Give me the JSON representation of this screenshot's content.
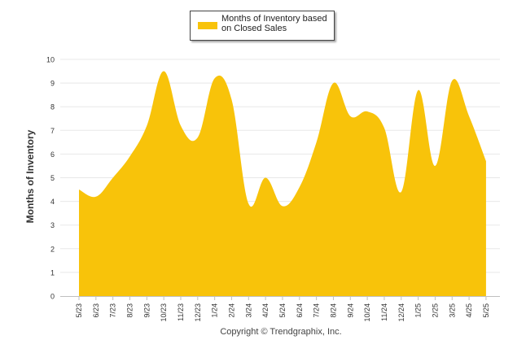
{
  "colors": {
    "fill": "#F8C30A",
    "grid": "#E8E8E8",
    "axis": "#C0C0C0",
    "text": "#333333"
  },
  "legend": {
    "label": "Months of Inventory based on Closed Sales"
  },
  "copyright": "Copyright © Trendgraphix, Inc.",
  "chart_data": {
    "type": "area",
    "title": "",
    "xlabel": "",
    "ylabel": "Months of Inventory",
    "ylim": [
      0,
      10
    ],
    "yticks": [
      "0",
      "1",
      "2",
      "3",
      "4",
      "5",
      "6",
      "7",
      "8",
      "9",
      "10"
    ],
    "grid": true,
    "legend_position": "top-center",
    "categories": [
      "5/23",
      "6/23",
      "7/23",
      "8/23",
      "9/23",
      "10/23",
      "11/23",
      "12/23",
      "1/24",
      "2/24",
      "3/24",
      "4/24",
      "5/24",
      "6/24",
      "7/24",
      "8/24",
      "9/24",
      "10/24",
      "11/24",
      "12/24",
      "1/25",
      "2/25",
      "3/25",
      "4/25",
      "5/25"
    ],
    "series": [
      {
        "name": "Months of Inventory based on Closed Sales",
        "values": [
          4.5,
          4.2,
          5.0,
          5.9,
          7.2,
          9.5,
          7.2,
          6.7,
          9.2,
          8.3,
          3.9,
          5.0,
          3.8,
          4.6,
          6.5,
          9.0,
          7.6,
          7.8,
          7.1,
          4.4,
          8.7,
          5.5,
          9.1,
          7.6,
          5.7
        ]
      }
    ]
  }
}
